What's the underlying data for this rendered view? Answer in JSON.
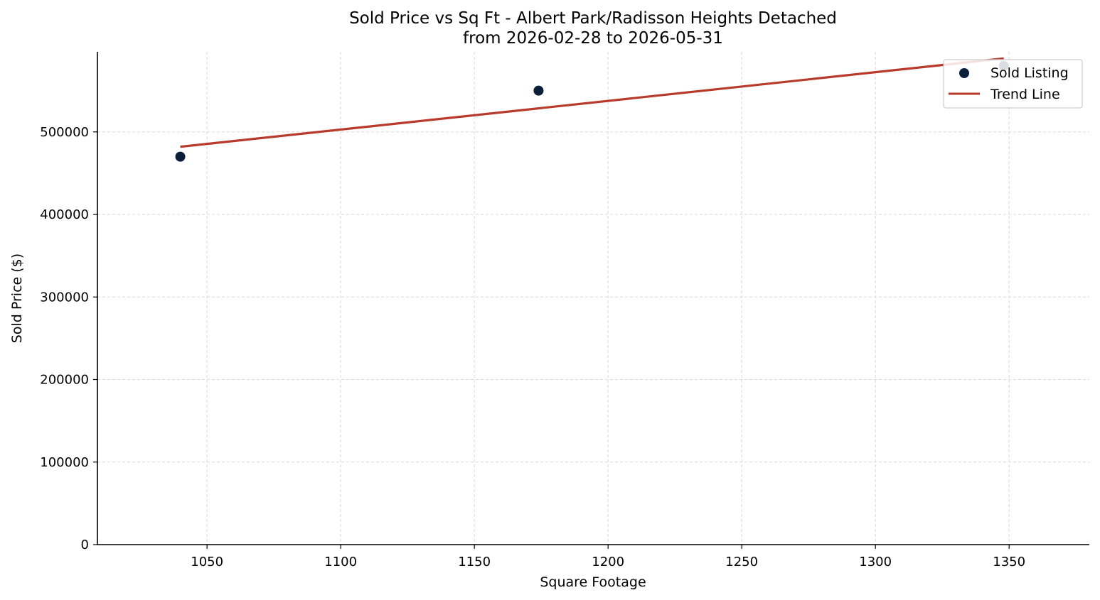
{
  "chart_data": {
    "type": "scatter",
    "title": "Sold Price vs Sq Ft - Albert Park/Radisson Heights Detached",
    "subtitle": "from 2026-02-28 to 2026-05-31",
    "xlabel": "Square Footage",
    "ylabel": "Sold Price ($)",
    "xlim": [
      1009,
      1380
    ],
    "ylim": [
      0,
      597000
    ],
    "x_ticks": [
      1050,
      1100,
      1150,
      1200,
      1250,
      1300,
      1350
    ],
    "y_ticks": [
      0,
      100000,
      200000,
      300000,
      400000,
      500000
    ],
    "grid": true,
    "legend_position": "top-right",
    "series": [
      {
        "name": "Sold Listing",
        "kind": "scatter",
        "color": "#0b1f3a",
        "points": [
          {
            "x": 1040,
            "y": 470000
          },
          {
            "x": 1174,
            "y": 550000
          },
          {
            "x": 1348,
            "y": 580000
          }
        ]
      },
      {
        "name": "Trend Line",
        "kind": "line",
        "color": "#b83a2b",
        "points": [
          {
            "x": 1040,
            "y": 482000
          },
          {
            "x": 1348,
            "y": 589000
          }
        ]
      }
    ]
  }
}
